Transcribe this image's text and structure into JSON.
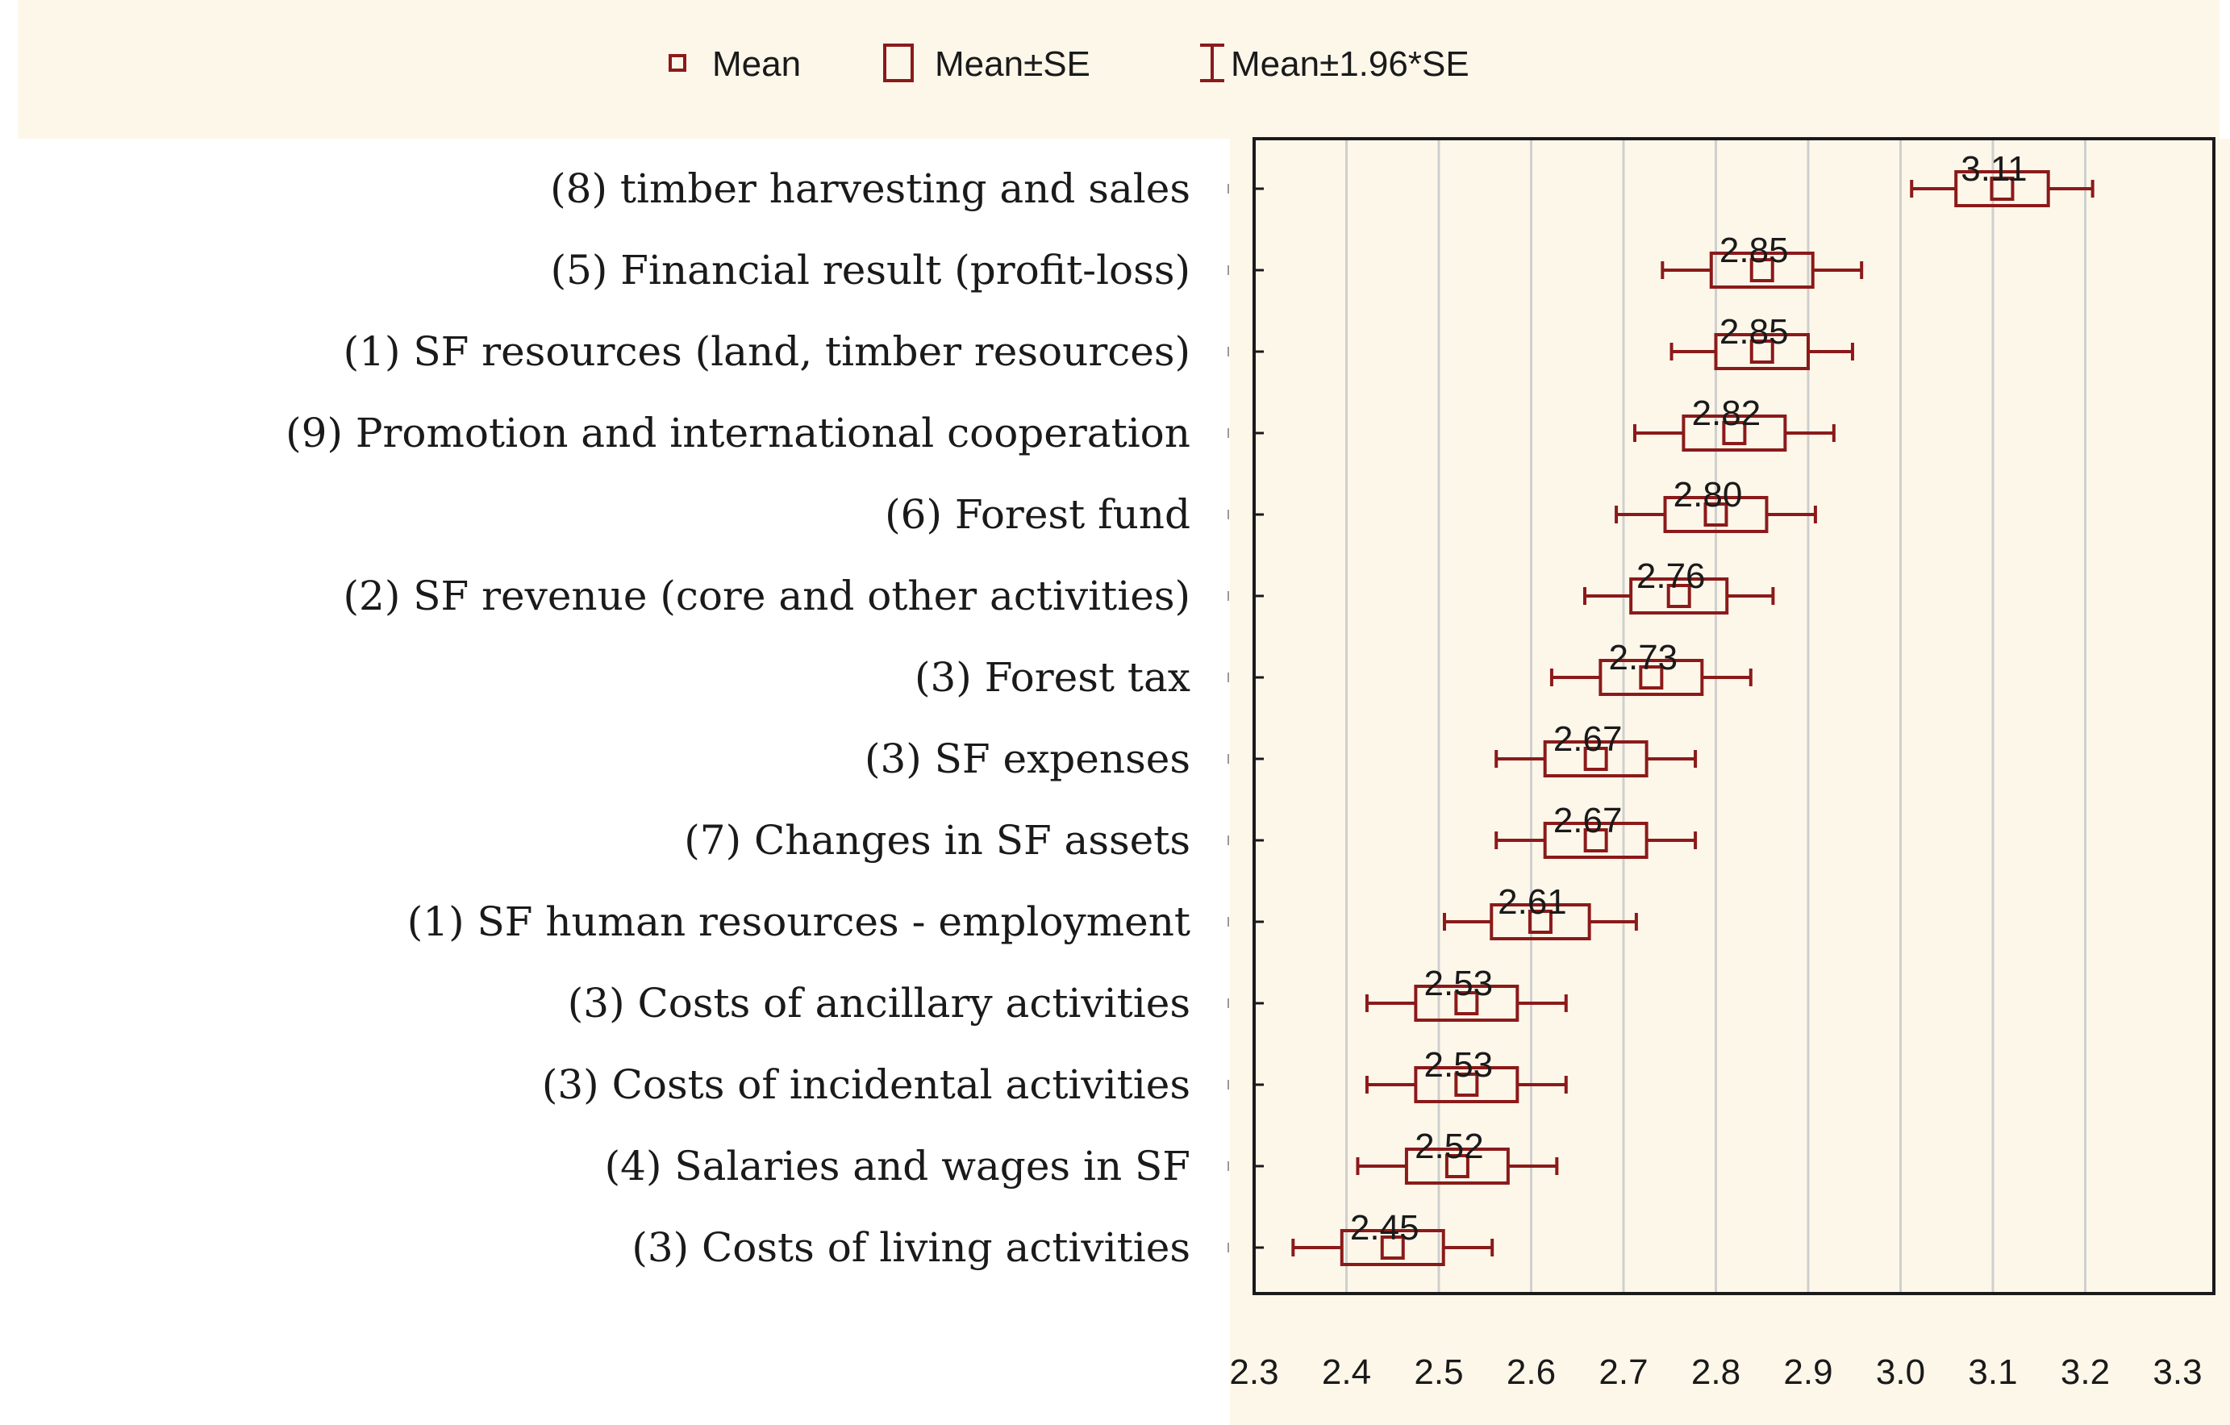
{
  "chart_data": {
    "type": "box",
    "orientation": "horizontal",
    "xlim": [
      2.3,
      3.3
    ],
    "x_ticks": [
      "2.3",
      "2.4",
      "2.5",
      "2.6",
      "2.7",
      "2.8",
      "2.9",
      "3.0",
      "3.1",
      "3.2",
      "3.3"
    ],
    "grid": true,
    "legend": [
      {
        "name": "Mean",
        "marker": "small-square"
      },
      {
        "name": "Mean±SE",
        "marker": "box"
      },
      {
        "name": "Mean±1.96*SE",
        "marker": "whisker"
      }
    ],
    "series": [
      {
        "label": "(8) timber harvesting and sales",
        "mean": 3.11,
        "mean_label": "3.11",
        "se": 0.05
      },
      {
        "label": "(5) Financial result (profit-loss)",
        "mean": 2.85,
        "mean_label": "2.85",
        "se": 0.055
      },
      {
        "label": "(1) SF resources (land, timber resources)",
        "mean": 2.85,
        "mean_label": "2.85",
        "se": 0.05
      },
      {
        "label": "(9) Promotion and international cooperation",
        "mean": 2.82,
        "mean_label": "2.82",
        "se": 0.055
      },
      {
        "label": "(6) Forest fund",
        "mean": 2.8,
        "mean_label": "2.80",
        "se": 0.055
      },
      {
        "label": "(2) SF revenue (core and other activities)",
        "mean": 2.76,
        "mean_label": "2.76",
        "se": 0.052
      },
      {
        "label": "(3) Forest tax",
        "mean": 2.73,
        "mean_label": "2.73",
        "se": 0.055
      },
      {
        "label": "(3) SF expenses",
        "mean": 2.67,
        "mean_label": "2.67",
        "se": 0.055
      },
      {
        "label": "(7) Changes in SF assets",
        "mean": 2.67,
        "mean_label": "2.67",
        "se": 0.055
      },
      {
        "label": "(1) SF human resources - employment",
        "mean": 2.61,
        "mean_label": "2.61",
        "se": 0.053
      },
      {
        "label": "(3) Costs of ancillary activities",
        "mean": 2.53,
        "mean_label": "2.53",
        "se": 0.055
      },
      {
        "label": "(3) Costs of incidental activities",
        "mean": 2.53,
        "mean_label": "2.53",
        "se": 0.055
      },
      {
        "label": "(4) Salaries and wages in SF",
        "mean": 2.52,
        "mean_label": "2.52",
        "se": 0.055
      },
      {
        "label": "(3) Costs of living activities",
        "mean": 2.45,
        "mean_label": "2.45",
        "se": 0.055
      }
    ]
  },
  "colors": {
    "accent": "#8b1a1a",
    "legend_bg": "#fdf7ea",
    "grid": "#cfcfcf",
    "axis": "#1a1a1a"
  }
}
